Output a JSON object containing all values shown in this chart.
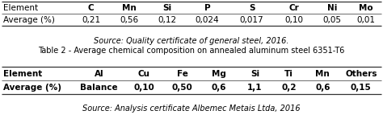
{
  "table1_headers": [
    "Element",
    "C",
    "Mn",
    "Si",
    "P",
    "S",
    "Cr",
    "Ni",
    "Mo"
  ],
  "table1_row1_label": "Average (%)",
  "table1_row1_values": [
    "0,21",
    "0,56",
    "0,12",
    "0,024",
    "0,017",
    "0,10",
    "0,05",
    "0,01"
  ],
  "table1_source": "Source: Quality certificate of general steel, 2016.",
  "table2_title": "Table 2 - Average chemical composition on annealed aluminum steel 6351-T6",
  "table2_headers": [
    "Element",
    "Al",
    "Cu",
    "Fe",
    "Mg",
    "Si",
    "Ti",
    "Mn",
    "Others"
  ],
  "table2_row1_label": "Average (%)",
  "table2_row1_values": [
    "Balance",
    "0,10",
    "0,50",
    "0,6",
    "1,1",
    "0,2",
    "0,6",
    "0,15"
  ],
  "table2_source": "Source: Analysis certificate Albemec Metais Ltda, 2016",
  "bg_color": "#ffffff",
  "text_color": "#000000",
  "font_size": 7.5,
  "line_color": "#333333",
  "table1_col_weights": [
    1.6,
    0.8,
    0.9,
    0.8,
    1.0,
    1.0,
    0.9,
    0.8,
    0.7
  ],
  "table2_col_weights": [
    1.6,
    1.1,
    0.9,
    0.8,
    0.8,
    0.8,
    0.7,
    0.8,
    0.9
  ]
}
